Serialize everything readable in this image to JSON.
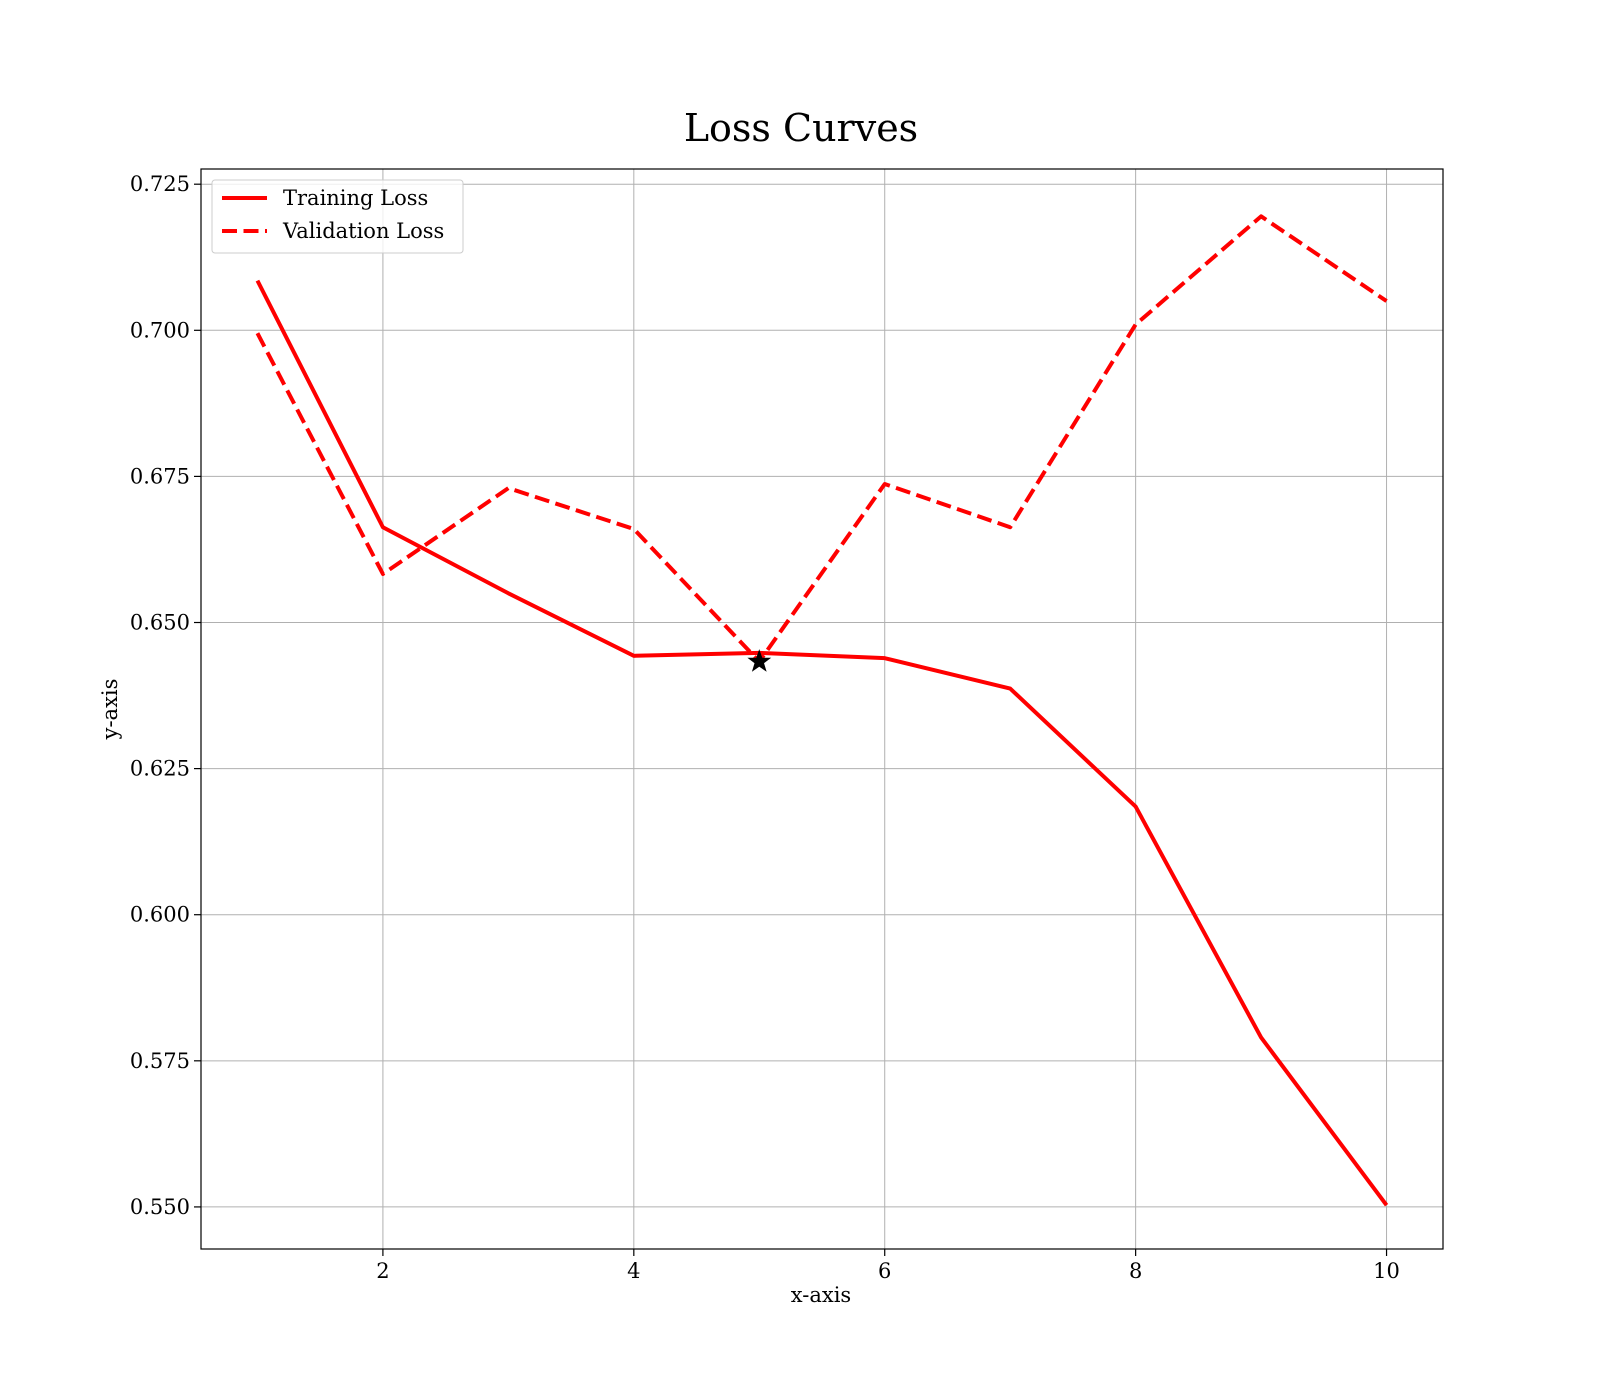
{
  "chart_data": {
    "type": "line",
    "title": "Loss Curves",
    "xlabel": "x-axis",
    "ylabel": "y-axis",
    "x": [
      1,
      2,
      3,
      4,
      5,
      6,
      7,
      8,
      9,
      10
    ],
    "xlim": [
      0.55,
      10.45
    ],
    "ylim": [
      0.5428,
      0.7276
    ],
    "xticks": [
      2,
      4,
      6,
      8,
      10
    ],
    "xtick_labels": [
      "2",
      "4",
      "6",
      "8",
      "10"
    ],
    "yticks": [
      0.55,
      0.575,
      0.6,
      0.625,
      0.65,
      0.675,
      0.7,
      0.725
    ],
    "ytick_labels": [
      "0.550",
      "0.575",
      "0.600",
      "0.625",
      "0.650",
      "0.675",
      "0.700",
      "0.725"
    ],
    "grid": true,
    "legend_position": "top-left",
    "series": [
      {
        "name": "Training Loss",
        "style": "solid",
        "color": "#ff0000",
        "values": [
          0.7085,
          0.6663,
          0.655,
          0.6443,
          0.6448,
          0.6439,
          0.6387,
          0.6185,
          0.579,
          0.5503
        ]
      },
      {
        "name": "Validation Loss",
        "style": "dashed",
        "color": "#ff0000",
        "values": [
          0.6995,
          0.6583,
          0.673,
          0.666,
          0.6433,
          0.6737,
          0.6663,
          0.701,
          0.7195,
          0.705
        ]
      }
    ],
    "markers": [
      {
        "x": 5,
        "y": 0.6433,
        "shape": "star",
        "color": "#000000"
      }
    ]
  }
}
